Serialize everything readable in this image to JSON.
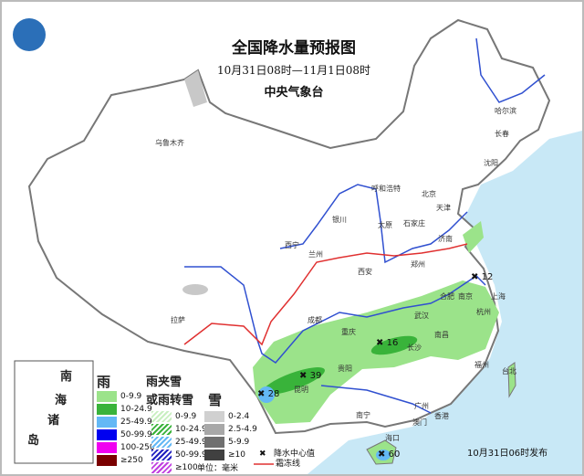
{
  "header": {
    "title": "全国降水量预报图",
    "period": "10月31日08时—11月1日08时",
    "org": "中央气象台"
  },
  "cities": [
    "乌鲁木齐",
    "哈尔滨",
    "长春",
    "沈阳",
    "呼和浩特",
    "北京",
    "天津",
    "银川",
    "太原",
    "石家庄",
    "济南",
    "西宁",
    "兰州",
    "郑州",
    "西安",
    "合肥",
    "南京",
    "上海",
    "杭州",
    "武汉",
    "成都",
    "重庆",
    "拉萨",
    "长沙",
    "南昌",
    "贵阳",
    "昆明",
    "福州",
    "台北",
    "南宁",
    "广州",
    "香港",
    "澳门",
    "海口"
  ],
  "rain_centers": [
    "12",
    "16",
    "28",
    "39",
    "60"
  ],
  "inset": {
    "labels": [
      "南",
      "海",
      "诸",
      "岛"
    ]
  },
  "legend": {
    "rain": {
      "title": "雨",
      "items": [
        {
          "label": "0-9.9",
          "color": "#9be38a"
        },
        {
          "label": "10-24.9",
          "color": "#39b33a"
        },
        {
          "label": "25-49.9",
          "color": "#63b8f5"
        },
        {
          "label": "50-99.9",
          "color": "#0000f0"
        },
        {
          "label": "100-250",
          "color": "#f000f0"
        },
        {
          "label": "≥250",
          "color": "#7a0000"
        }
      ]
    },
    "mixed": {
      "title1": "雨夹雪",
      "title2": "或雨转雪",
      "items": [
        {
          "label": "0-9.9",
          "color": "#c8efc0"
        },
        {
          "label": "10-24.9",
          "color": "#39b33a"
        },
        {
          "label": "25-49.9",
          "color": "#63b8f5"
        },
        {
          "label": "50-99.9",
          "color": "#2020c0"
        },
        {
          "label": "≥100",
          "color": "#c040e0"
        }
      ]
    },
    "snow": {
      "title": "雪",
      "items": [
        {
          "label": "0-2.4",
          "color": "#d0d0d0"
        },
        {
          "label": "2.5-4.9",
          "color": "#a8a8a8"
        },
        {
          "label": "5-9.9",
          "color": "#707070"
        },
        {
          "label": "≥10",
          "color": "#404040"
        }
      ]
    },
    "center_label": "降水中心值",
    "frost_label": "霜冻线",
    "unit": "单位：毫米"
  },
  "footer": {
    "published": "10月31日06时发布"
  }
}
